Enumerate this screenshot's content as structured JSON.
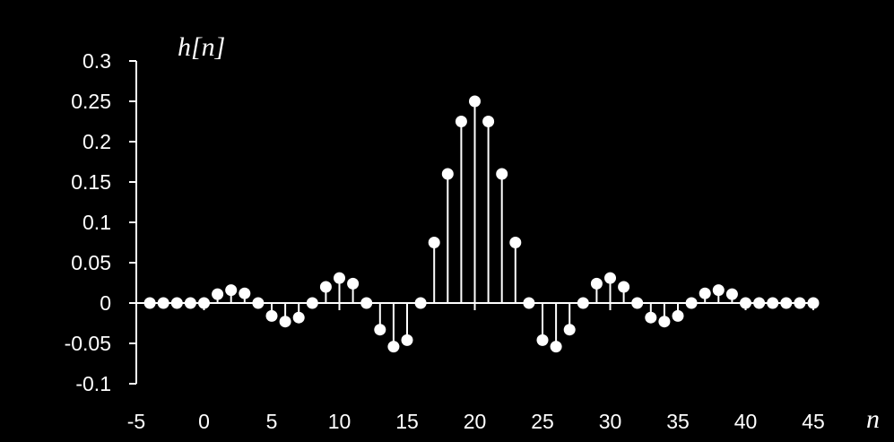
{
  "chart_data": {
    "type": "stem",
    "title": "",
    "ylabel": "h[n]",
    "xlabel": "n",
    "xlim": [
      -5,
      45
    ],
    "ylim": [
      -0.1,
      0.3
    ],
    "xticks": [
      "-5",
      "0",
      "5",
      "10",
      "15",
      "20",
      "25",
      "30",
      "35",
      "40",
      "45"
    ],
    "yticks": [
      "0.3",
      "0.25",
      "0.2",
      "0.15",
      "0.1",
      "0.05",
      "0",
      "-0.05",
      "-0.1"
    ],
    "grid": false,
    "legend": "none",
    "colors": {
      "background": "#000000",
      "foreground": "#ffffff"
    },
    "x": [
      -4,
      -3,
      -2,
      -1,
      0,
      1,
      2,
      3,
      4,
      5,
      6,
      7,
      8,
      9,
      10,
      11,
      12,
      13,
      14,
      15,
      16,
      17,
      18,
      19,
      20,
      21,
      22,
      23,
      24,
      25,
      26,
      27,
      28,
      29,
      30,
      31,
      32,
      33,
      34,
      35,
      36,
      37,
      38,
      39,
      40,
      41,
      42,
      43,
      44,
      45
    ],
    "y": [
      0,
      0,
      0,
      0,
      0,
      0.011,
      0.016,
      0.012,
      0,
      -0.016,
      -0.023,
      -0.018,
      0,
      0.02,
      0.031,
      0.024,
      0,
      -0.033,
      -0.054,
      -0.046,
      0,
      0.075,
      0.16,
      0.225,
      0.25,
      0.225,
      0.16,
      0.075,
      0,
      -0.046,
      -0.054,
      -0.033,
      0,
      0.024,
      0.031,
      0.02,
      0,
      -0.018,
      -0.023,
      -0.016,
      0,
      0.012,
      0.016,
      0.011,
      0,
      0,
      0,
      0,
      0,
      0
    ]
  }
}
